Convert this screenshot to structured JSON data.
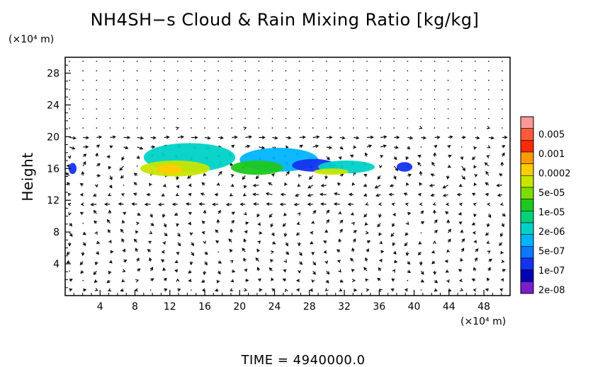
{
  "chart_data": {
    "type": "heatmap",
    "title": "NH4SH−s Cloud & Rain Mixing Ratio [kg/kg]",
    "xunit": "(×10⁴ m)",
    "yunit": "(×10⁴ m)",
    "ylabel": "Height",
    "xlim": [
      0,
      51
    ],
    "ylim": [
      0,
      30
    ],
    "xticks": [
      4,
      8,
      12,
      16,
      20,
      24,
      28,
      32,
      36,
      40,
      44,
      48
    ],
    "yticks": [
      4,
      8,
      12,
      16,
      20,
      24,
      28
    ],
    "colorbar": {
      "labels": [
        "0.005",
        "0.001",
        "0.0002",
        "5e-05",
        "1e-05",
        "2e-06",
        "5e-07",
        "1e-07",
        "2e-08"
      ],
      "colors": [
        "#ff9999",
        "#ff5a3c",
        "#ff2a00",
        "#ff9a00",
        "#ffcc00",
        "#c8e600",
        "#7ddc00",
        "#1ec81e",
        "#00d27a",
        "#00d2c8",
        "#00b4ff",
        "#0a78ff",
        "#1432f0",
        "#0000b4",
        "#7a1ec8"
      ]
    },
    "cloud_regions": [
      {
        "x": 0.4,
        "y": 15.3,
        "w": 0.9,
        "h": 1.4,
        "level": "1e-07"
      },
      {
        "x": 9.0,
        "y": 15.6,
        "w": 10.5,
        "h": 3.6,
        "level": "2e-06"
      },
      {
        "x": 8.6,
        "y": 15.0,
        "w": 8.0,
        "h": 2.0,
        "level": "5e-05"
      },
      {
        "x": 10.5,
        "y": 15.3,
        "w": 3.0,
        "h": 1.2,
        "level": "0.0002"
      },
      {
        "x": 20.0,
        "y": 15.6,
        "w": 9.0,
        "h": 3.0,
        "level": "5e-07"
      },
      {
        "x": 19.0,
        "y": 15.2,
        "w": 6.0,
        "h": 1.8,
        "level": "1e-05"
      },
      {
        "x": 26.0,
        "y": 15.6,
        "w": 5.0,
        "h": 1.6,
        "level": "1e-07"
      },
      {
        "x": 29.0,
        "y": 15.4,
        "w": 6.5,
        "h": 1.6,
        "level": "2e-06"
      },
      {
        "x": 28.5,
        "y": 15.2,
        "w": 4.0,
        "h": 0.8,
        "level": "5e-05"
      },
      {
        "x": 38.0,
        "y": 15.6,
        "w": 1.8,
        "h": 1.2,
        "level": "1e-07"
      }
    ],
    "time_label": "TIME  =  4940000.0"
  }
}
